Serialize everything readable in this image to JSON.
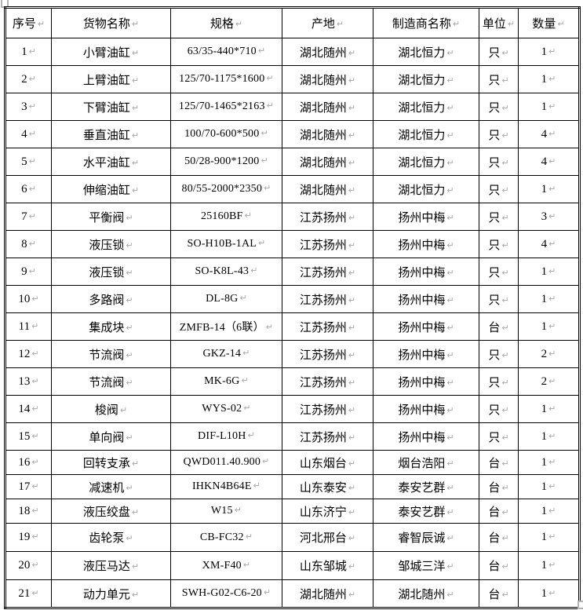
{
  "marks": {
    "pilcrow": "↵",
    "pilcrow_color": "#a8a8a8"
  },
  "colors": {
    "border": "#000000",
    "text": "#000000",
    "background": "#ffffff"
  },
  "table": {
    "headers": [
      "序号",
      "货物名称",
      "规格",
      "产地",
      "制造商名称",
      "单位",
      "数量"
    ],
    "rows": [
      {
        "no": "1",
        "name": "小臂油缸",
        "spec": "63/35-440*710",
        "origin": "湖北随州",
        "manufacturer": "湖北恒力",
        "unit": "只",
        "qty": "1"
      },
      {
        "no": "2",
        "name": "上臂油缸",
        "spec": "125/70-1175*1600",
        "origin": "湖北随州",
        "manufacturer": "湖北恒力",
        "unit": "只",
        "qty": "1"
      },
      {
        "no": "3",
        "name": "下臂油缸",
        "spec": "125/70-1465*2163",
        "origin": "湖北随州",
        "manufacturer": "湖北恒力",
        "unit": "只",
        "qty": "1"
      },
      {
        "no": "4",
        "name": "垂直油缸",
        "spec": "100/70-600*500",
        "origin": "湖北随州",
        "manufacturer": "湖北恒力",
        "unit": "只",
        "qty": "4"
      },
      {
        "no": "5",
        "name": "水平油缸",
        "spec": "50/28-900*1200",
        "origin": "湖北随州",
        "manufacturer": "湖北恒力",
        "unit": "只",
        "qty": "4"
      },
      {
        "no": "6",
        "name": "伸缩油缸",
        "spec": "80/55-2000*2350",
        "origin": "湖北随州",
        "manufacturer": "湖北恒力",
        "unit": "只",
        "qty": "1"
      },
      {
        "no": "7",
        "name": "平衡阀",
        "spec": "25160BF",
        "origin": "江苏扬州",
        "manufacturer": "扬州中梅",
        "unit": "只",
        "qty": "3"
      },
      {
        "no": "8",
        "name": "液压锁",
        "spec": "SO-H10B-1AL",
        "origin": "江苏扬州",
        "manufacturer": "扬州中梅",
        "unit": "只",
        "qty": "4"
      },
      {
        "no": "9",
        "name": "液压锁",
        "spec": "SO-K8L-43",
        "origin": "江苏扬州",
        "manufacturer": "扬州中梅",
        "unit": "只",
        "qty": "1"
      },
      {
        "no": "10",
        "name": "多路阀",
        "spec": "DL-8G",
        "origin": "江苏扬州",
        "manufacturer": "扬州中梅",
        "unit": "只",
        "qty": "1"
      },
      {
        "no": "11",
        "name": "集成块",
        "spec": "ZMFB-14（6联）",
        "origin": "江苏扬州",
        "manufacturer": "扬州中梅",
        "unit": "台",
        "qty": "1"
      },
      {
        "no": "12",
        "name": "节流阀",
        "spec": "GKZ-14",
        "origin": "江苏扬州",
        "manufacturer": "扬州中梅",
        "unit": "只",
        "qty": "2"
      },
      {
        "no": "13",
        "name": "节流阀",
        "spec": "MK-6G",
        "origin": "江苏扬州",
        "manufacturer": "扬州中梅",
        "unit": "只",
        "qty": "2"
      },
      {
        "no": "14",
        "name": "梭阀",
        "spec": "WYS-02",
        "origin": "江苏扬州",
        "manufacturer": "扬州中梅",
        "unit": "只",
        "qty": "1"
      },
      {
        "no": "15",
        "name": "单向阀",
        "spec": "DIF-L10H",
        "origin": "江苏扬州",
        "manufacturer": "扬州中梅",
        "unit": "只",
        "qty": "1"
      },
      {
        "no": "16",
        "name": "回转支承",
        "spec": "QWD011.40.900",
        "origin": "山东烟台",
        "manufacturer": "烟台浩阳",
        "unit": "台",
        "qty": "1"
      },
      {
        "no": "17",
        "name": "减速机",
        "spec": "IHKN4B64E",
        "origin": "山东泰安",
        "manufacturer": "泰安艺群",
        "unit": "台",
        "qty": "1"
      },
      {
        "no": "18",
        "name": "液压绞盘",
        "spec": "W15",
        "origin": "山东济宁",
        "manufacturer": "泰安艺群",
        "unit": "台",
        "qty": "1"
      },
      {
        "no": "19",
        "name": "齿轮泵",
        "spec": "CB-FC32",
        "origin": "河北邢台",
        "manufacturer": "睿智辰诚",
        "unit": "台",
        "qty": "1"
      },
      {
        "no": "20",
        "name": "液压马达",
        "spec": "XM-F40",
        "origin": "山东邹城",
        "manufacturer": "邹城三洋",
        "unit": "台",
        "qty": "1"
      },
      {
        "no": "21",
        "name": "动力单元",
        "spec": "SWH-G02-C6-20",
        "origin": "湖北随州",
        "manufacturer": "湖北随州",
        "unit": "台",
        "qty": "1"
      }
    ]
  }
}
